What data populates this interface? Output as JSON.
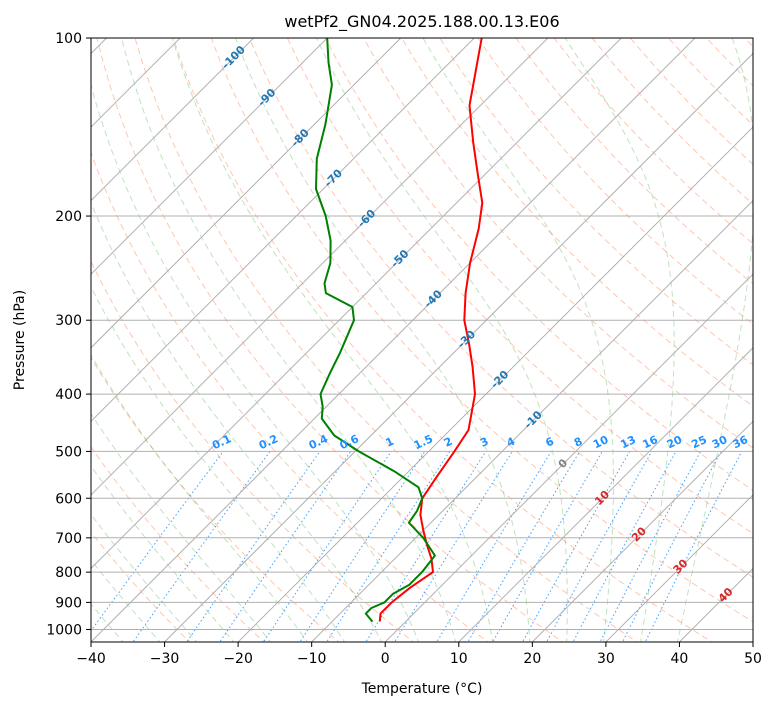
{
  "chart_data": {
    "type": "line",
    "title": "wetPf2_GN04.2025.188.00.13.E06",
    "xlabel": "Temperature (°C)",
    "ylabel": "Pressure (hPa)",
    "x_axis": {
      "lim": [
        -40,
        50
      ],
      "ticks": [
        -40,
        -30,
        -20,
        -10,
        0,
        10,
        20,
        30,
        40,
        50
      ],
      "tick_labels": [
        "−40",
        "−30",
        "−20",
        "−10",
        "0",
        "10",
        "20",
        "30",
        "40",
        "50"
      ]
    },
    "y_axis": {
      "scale": "log",
      "lim": [
        1050,
        100
      ],
      "ticks": [
        100,
        200,
        300,
        400,
        500,
        600,
        700,
        800,
        900,
        1000
      ],
      "tick_labels": [
        "100",
        "200",
        "300",
        "400",
        "500",
        "600",
        "700",
        "800",
        "900",
        "1000"
      ]
    },
    "grid": true,
    "skew_deg": 45,
    "series": [
      {
        "role": "temperature",
        "color": "#ff0000",
        "points": [
          {
            "p": 970,
            "t": -3.5
          },
          {
            "p": 940,
            "t": -4.5
          },
          {
            "p": 900,
            "t": -4.5
          },
          {
            "p": 850,
            "t": -4.0
          },
          {
            "p": 800,
            "t": -3.0
          },
          {
            "p": 760,
            "t": -5.0
          },
          {
            "p": 720,
            "t": -7.5
          },
          {
            "p": 680,
            "t": -10.0
          },
          {
            "p": 640,
            "t": -12.5
          },
          {
            "p": 600,
            "t": -14.5
          },
          {
            "p": 550,
            "t": -15.5
          },
          {
            "p": 500,
            "t": -16.5
          },
          {
            "p": 460,
            "t": -17.5
          },
          {
            "p": 400,
            "t": -21.5
          },
          {
            "p": 360,
            "t": -25.5
          },
          {
            "p": 330,
            "t": -29.0
          },
          {
            "p": 300,
            "t": -33.0
          },
          {
            "p": 270,
            "t": -36.5
          },
          {
            "p": 240,
            "t": -40.0
          },
          {
            "p": 210,
            "t": -43.5
          },
          {
            "p": 190,
            "t": -46.5
          },
          {
            "p": 170,
            "t": -51.0
          },
          {
            "p": 150,
            "t": -56.0
          },
          {
            "p": 130,
            "t": -61.5
          },
          {
            "p": 115,
            "t": -65.0
          },
          {
            "p": 100,
            "t": -69.0
          }
        ]
      },
      {
        "role": "dewpoint",
        "color": "#008000",
        "points": [
          {
            "p": 970,
            "t": -4.5
          },
          {
            "p": 940,
            "t": -6.5
          },
          {
            "p": 920,
            "t": -6.5
          },
          {
            "p": 900,
            "t": -5.5
          },
          {
            "p": 870,
            "t": -5.5
          },
          {
            "p": 840,
            "t": -4.5
          },
          {
            "p": 800,
            "t": -4.5
          },
          {
            "p": 750,
            "t": -5.0
          },
          {
            "p": 700,
            "t": -9.0
          },
          {
            "p": 660,
            "t": -13.0
          },
          {
            "p": 630,
            "t": -13.5
          },
          {
            "p": 600,
            "t": -14.5
          },
          {
            "p": 575,
            "t": -16.5
          },
          {
            "p": 540,
            "t": -22.0
          },
          {
            "p": 500,
            "t": -29.5
          },
          {
            "p": 470,
            "t": -35.0
          },
          {
            "p": 440,
            "t": -39.0
          },
          {
            "p": 420,
            "t": -40.5
          },
          {
            "p": 400,
            "t": -42.5
          },
          {
            "p": 370,
            "t": -44.0
          },
          {
            "p": 340,
            "t": -45.5
          },
          {
            "p": 300,
            "t": -48.0
          },
          {
            "p": 285,
            "t": -50.0
          },
          {
            "p": 270,
            "t": -55.5
          },
          {
            "p": 260,
            "t": -57.0
          },
          {
            "p": 240,
            "t": -59.0
          },
          {
            "p": 220,
            "t": -62.0
          },
          {
            "p": 200,
            "t": -66.0
          },
          {
            "p": 180,
            "t": -71.0
          },
          {
            "p": 160,
            "t": -75.0
          },
          {
            "p": 140,
            "t": -78.5
          },
          {
            "p": 120,
            "t": -83.0
          },
          {
            "p": 110,
            "t": -86.5
          },
          {
            "p": 100,
            "t": -90.0
          }
        ]
      }
    ],
    "isotherm_labels": [
      {
        "text": "-100",
        "t": -100
      },
      {
        "text": "-90",
        "t": -90
      },
      {
        "text": "-80",
        "t": -80
      },
      {
        "text": "-70",
        "t": -70
      },
      {
        "text": "-60",
        "t": -60
      },
      {
        "text": "-50",
        "t": -50
      },
      {
        "text": "-40",
        "t": -40
      },
      {
        "text": "-30",
        "t": -30
      },
      {
        "text": "-20",
        "t": -20
      },
      {
        "text": "-10",
        "t": -10
      },
      {
        "text": "0",
        "t": 0
      },
      {
        "text": "10",
        "t": 10
      },
      {
        "text": "20",
        "t": 20
      },
      {
        "text": "30",
        "t": 30
      },
      {
        "text": "40",
        "t": 40
      }
    ],
    "mixing_ratio_labels": [
      "0.1",
      "0.2",
      "0.4",
      "0.6",
      "1",
      "1.5",
      "2",
      "3",
      "4",
      "6",
      "8",
      "10",
      "13",
      "16",
      "20",
      "25",
      "30",
      "36"
    ],
    "mixing_ratio_values": [
      0.1,
      0.2,
      0.4,
      0.6,
      1,
      1.5,
      2,
      3,
      4,
      6,
      8,
      10,
      13,
      16,
      20,
      25,
      30,
      36
    ],
    "colors": {
      "isotherm_label_cold": "#1f77b4",
      "isotherm_label_zero": "#808080",
      "isotherm_label_warm": "#d62728",
      "mixing_ratio": "#1e90ff",
      "dry_adiabat": "#ffa07a",
      "moist_adiabat": "#2ca02c",
      "grid": "#b0b0b0"
    }
  }
}
